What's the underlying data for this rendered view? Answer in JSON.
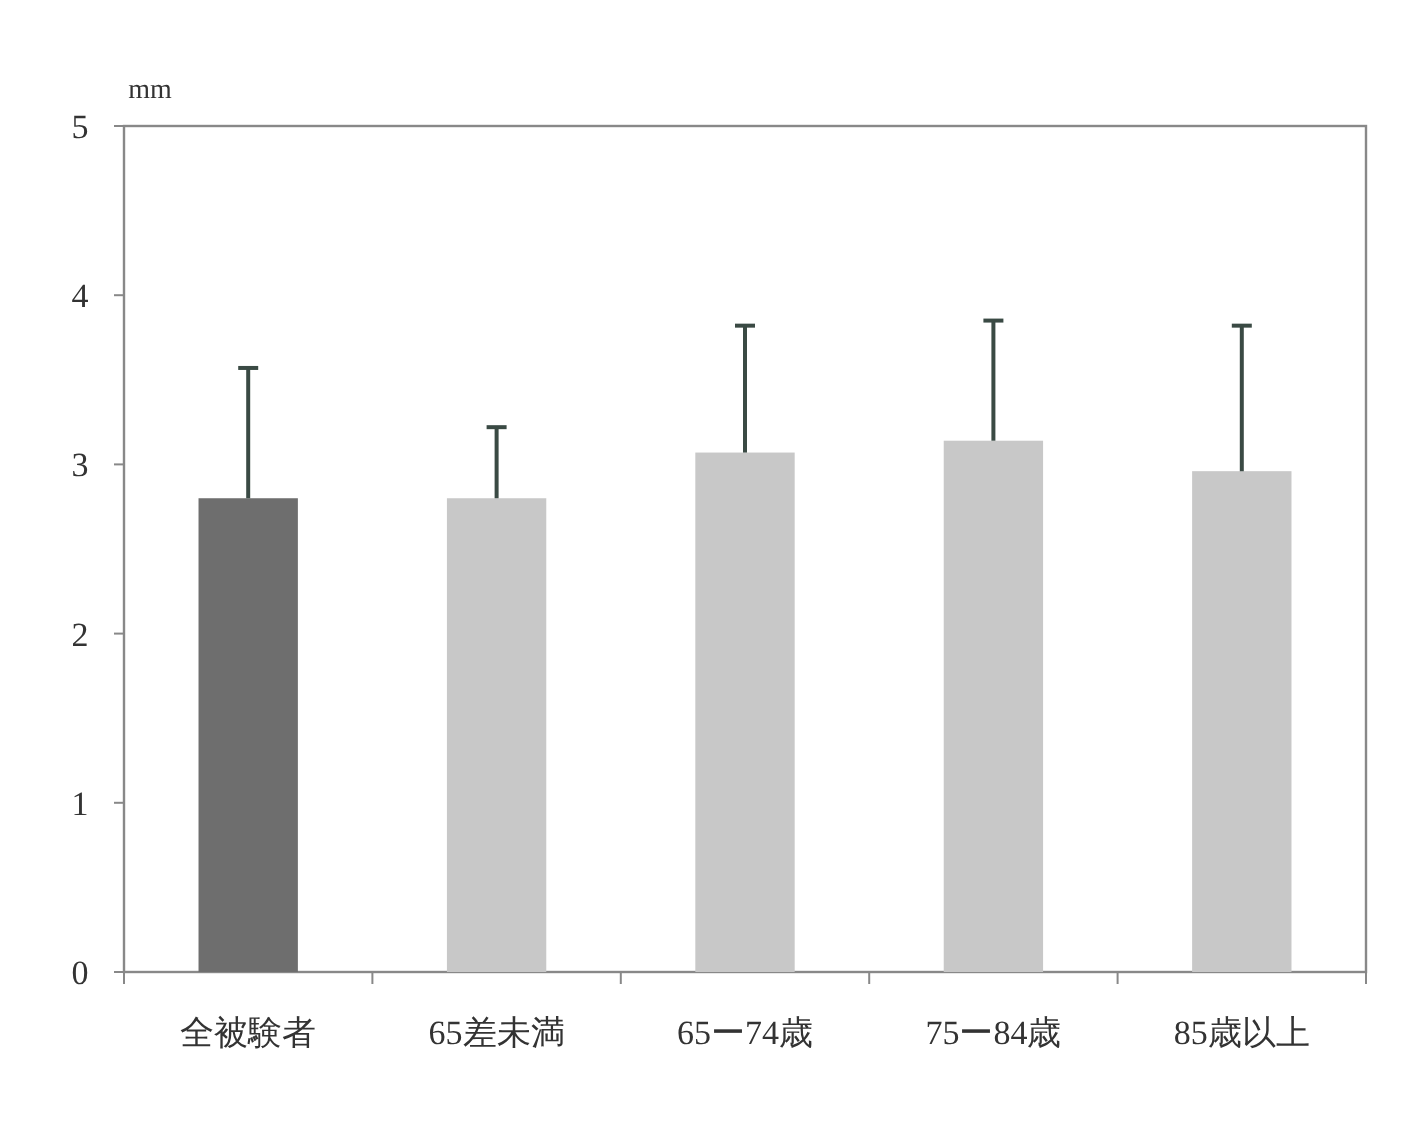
{
  "chart_data": {
    "type": "bar",
    "ylabel": "mm",
    "categories": [
      "全被験者",
      "65差未満",
      "65ー74歳",
      "75ー84歳",
      "85歳以上"
    ],
    "values": [
      2.8,
      2.8,
      3.07,
      3.14,
      2.96
    ],
    "colors": [
      "#6e6e6e",
      "#c8c8c8",
      "#c8c8c8",
      "#c8c8c8",
      "#c8c8c8"
    ],
    "errors": [
      [
        2.8,
        3.57
      ],
      [
        2.8,
        3.22
      ],
      [
        3.07,
        3.82
      ],
      [
        3.14,
        3.85
      ],
      [
        2.96,
        3.82
      ]
    ],
    "ylim": [
      0,
      5
    ],
    "yticks": [
      0,
      1,
      2,
      3,
      4,
      5
    ],
    "grid": false
  }
}
